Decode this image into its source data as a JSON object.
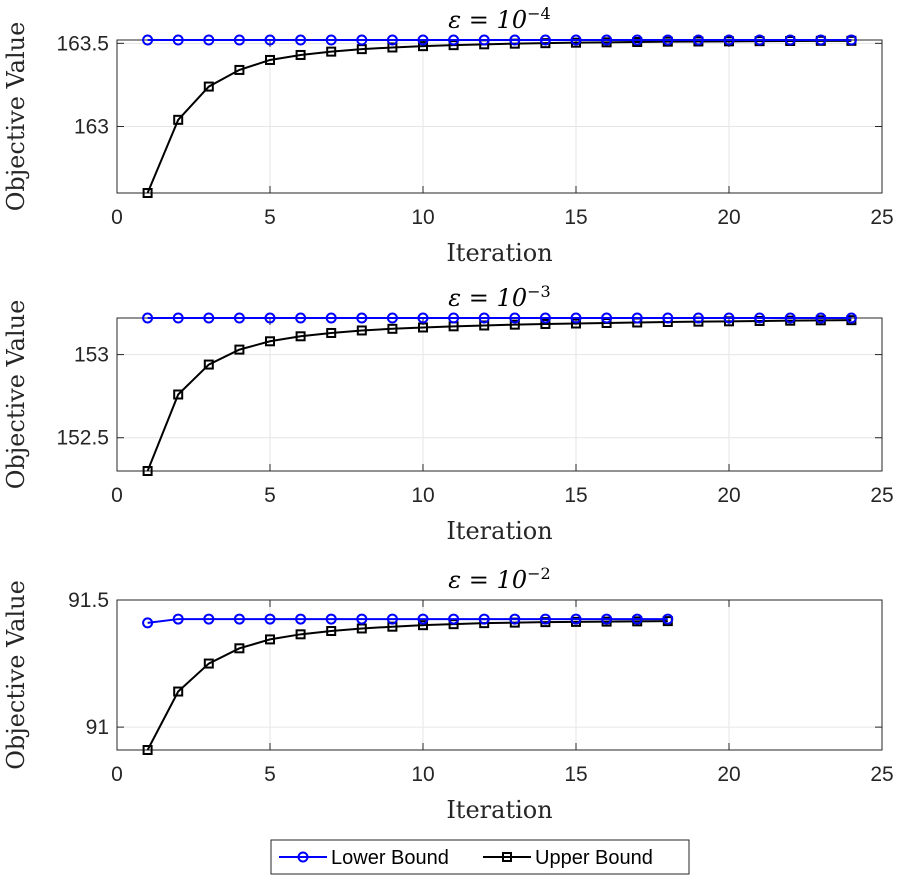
{
  "legend": {
    "placement": "bottom-center",
    "items": [
      {
        "label": "Lower Bound",
        "color": "#0000ff",
        "marker": "circle"
      },
      {
        "label": "Upper Bound",
        "color": "#000000",
        "marker": "square"
      }
    ]
  },
  "chart_data": [
    {
      "type": "line",
      "title_base": "ε = 10",
      "title_exp": "−4",
      "xlabel": "Iteration",
      "ylabel": "Objective Value",
      "xlim": [
        0,
        25
      ],
      "ylim": [
        162.6,
        163.52
      ],
      "xticks": [
        0,
        5,
        10,
        15,
        20,
        25
      ],
      "yticks": [
        163,
        163.5
      ],
      "ytick_labels": [
        "163",
        "163.5"
      ],
      "grid": true,
      "x": [
        1,
        2,
        3,
        4,
        5,
        6,
        7,
        8,
        9,
        10,
        11,
        12,
        13,
        14,
        15,
        16,
        17,
        18,
        19,
        20,
        21,
        22,
        23,
        24
      ],
      "series": [
        {
          "name": "Lower Bound",
          "color": "#0000ff",
          "marker": "circle",
          "values": [
            163.52,
            163.52,
            163.52,
            163.52,
            163.52,
            163.52,
            163.52,
            163.52,
            163.52,
            163.52,
            163.52,
            163.52,
            163.52,
            163.52,
            163.52,
            163.52,
            163.52,
            163.52,
            163.52,
            163.52,
            163.52,
            163.52,
            163.52,
            163.52
          ]
        },
        {
          "name": "Upper Bound",
          "color": "#000000",
          "marker": "square",
          "values": [
            162.6,
            163.04,
            163.24,
            163.34,
            163.4,
            163.43,
            163.45,
            163.465,
            163.475,
            163.483,
            163.489,
            163.494,
            163.498,
            163.501,
            163.504,
            163.506,
            163.508,
            163.51,
            163.511,
            163.512,
            163.513,
            163.514,
            163.515,
            163.515
          ]
        }
      ]
    },
    {
      "type": "line",
      "title_base": "ε = 10",
      "title_exp": "−3",
      "xlabel": "Iteration",
      "ylabel": "Objective Value",
      "xlim": [
        0,
        25
      ],
      "ylim": [
        152.3,
        153.22
      ],
      "xticks": [
        0,
        5,
        10,
        15,
        20,
        25
      ],
      "yticks": [
        152.5,
        153
      ],
      "ytick_labels": [
        "152.5",
        "153"
      ],
      "grid": true,
      "x": [
        1,
        2,
        3,
        4,
        5,
        6,
        7,
        8,
        9,
        10,
        11,
        12,
        13,
        14,
        15,
        16,
        17,
        18,
        19,
        20,
        21,
        22,
        23,
        24
      ],
      "series": [
        {
          "name": "Lower Bound",
          "color": "#0000ff",
          "marker": "circle",
          "values": [
            153.22,
            153.22,
            153.22,
            153.22,
            153.22,
            153.22,
            153.22,
            153.22,
            153.22,
            153.22,
            153.22,
            153.22,
            153.22,
            153.22,
            153.22,
            153.22,
            153.22,
            153.22,
            153.22,
            153.22,
            153.22,
            153.22,
            153.22,
            153.22
          ]
        },
        {
          "name": "Upper Bound",
          "color": "#000000",
          "marker": "square",
          "values": [
            152.3,
            152.76,
            152.94,
            153.03,
            153.08,
            153.11,
            153.13,
            153.145,
            153.155,
            153.163,
            153.17,
            153.175,
            153.18,
            153.184,
            153.187,
            153.19,
            153.193,
            153.196,
            153.198,
            153.2,
            153.202,
            153.204,
            153.206,
            153.207
          ]
        }
      ]
    },
    {
      "type": "line",
      "title_base": "ε = 10",
      "title_exp": "−2",
      "xlabel": "Iteration",
      "ylabel": "Objective Value",
      "xlim": [
        0,
        25
      ],
      "ylim": [
        90.91,
        91.5
      ],
      "xticks": [
        0,
        5,
        10,
        15,
        20,
        25
      ],
      "yticks": [
        91,
        91.5
      ],
      "ytick_labels": [
        "91",
        "91.5"
      ],
      "grid": true,
      "x": [
        1,
        2,
        3,
        4,
        5,
        6,
        7,
        8,
        9,
        10,
        11,
        12,
        13,
        14,
        15,
        16,
        17,
        18
      ],
      "series": [
        {
          "name": "Lower Bound",
          "color": "#0000ff",
          "marker": "circle",
          "values": [
            91.41,
            91.425,
            91.425,
            91.425,
            91.425,
            91.425,
            91.425,
            91.425,
            91.425,
            91.425,
            91.425,
            91.425,
            91.425,
            91.425,
            91.425,
            91.425,
            91.425,
            91.425
          ]
        },
        {
          "name": "Upper Bound",
          "color": "#000000",
          "marker": "square",
          "values": [
            90.91,
            91.14,
            91.25,
            91.31,
            91.345,
            91.365,
            91.378,
            91.388,
            91.395,
            91.401,
            91.405,
            91.409,
            91.411,
            91.413,
            91.414,
            91.415,
            91.416,
            91.417
          ]
        }
      ]
    }
  ]
}
